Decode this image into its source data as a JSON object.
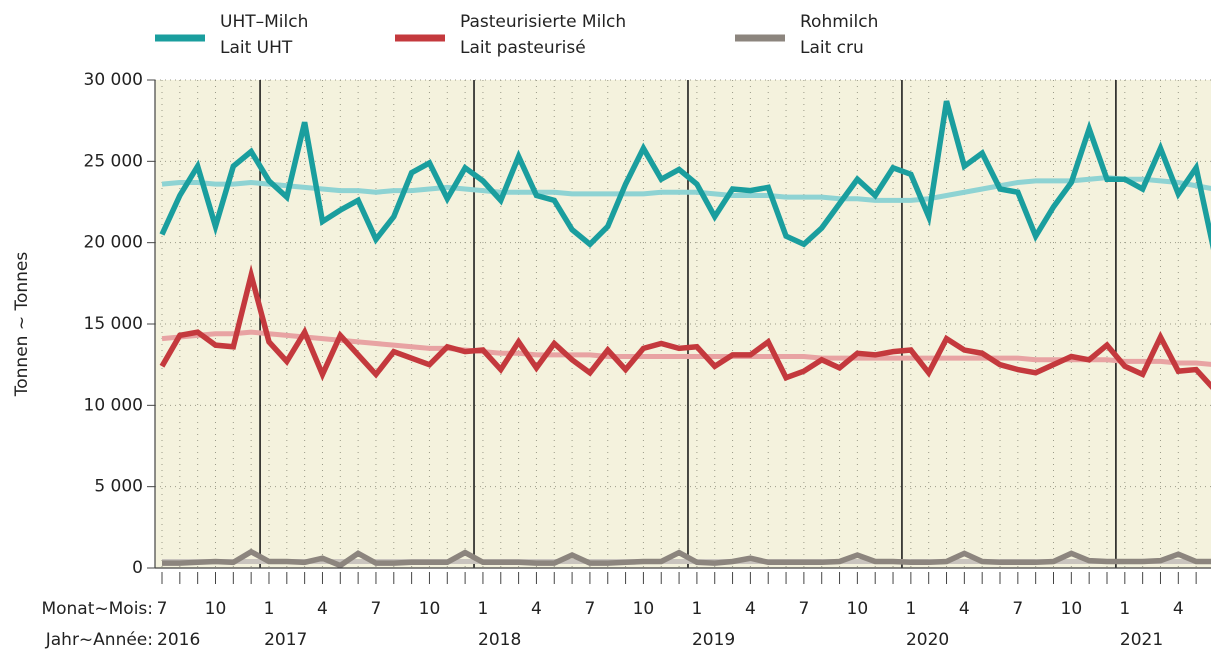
{
  "chart_data": {
    "type": "line",
    "y_label": "Tonnen  ~  Tonnes",
    "month_label": "Monat~Mois:",
    "year_label": "Jahr~Année:",
    "categories": [
      "7",
      null,
      null,
      "10",
      null,
      null,
      "1",
      null,
      null,
      "4",
      null,
      null,
      "7",
      null,
      null,
      "10",
      null,
      null,
      "1",
      null,
      null,
      "4",
      null,
      null,
      "7",
      null,
      null,
      "10",
      null,
      null,
      "1",
      null,
      null,
      "4",
      null,
      null,
      "7",
      null,
      null,
      "10",
      null,
      null,
      "1",
      null,
      null,
      "4",
      null,
      null,
      "7",
      null,
      null,
      "10",
      null,
      null,
      "1",
      null,
      null,
      "4",
      null,
      null
    ],
    "years": [
      "2016",
      "2017",
      "2018",
      "2019",
      "2020",
      "2021"
    ],
    "ylim": [
      0,
      30000
    ],
    "yticks": [
      0,
      {
        "value": 5000,
        "label": "5 000"
      },
      {
        "value": 10000,
        "label": "10 000"
      },
      {
        "value": 15000,
        "label": "15 000"
      },
      {
        "value": 20000,
        "label": "20 000"
      },
      {
        "value": 25000,
        "label": "25 000"
      },
      {
        "value": 30000,
        "label": "30 000"
      }
    ],
    "grid": true,
    "series": [
      {
        "name": [
          "UHT–Milch",
          "Lait UHT"
        ],
        "color": "#1a9e9e",
        "trend_color": "#8ed3d3",
        "values": [
          20500,
          22900,
          24700,
          21000,
          24700,
          25600,
          23800,
          22800,
          27400,
          21300,
          22000,
          22600,
          20200,
          21600,
          24300,
          24900,
          22700,
          24600,
          23800,
          22600,
          25300,
          22900,
          22600,
          20800,
          19900,
          21000,
          23600,
          25800,
          23900,
          24500,
          23600,
          21600,
          23300,
          23200,
          23400,
          20400,
          19900,
          20900,
          22400,
          23900,
          22900,
          24600,
          24200,
          21600,
          28700,
          24700,
          25500,
          23300,
          23100,
          20400,
          22200,
          23700,
          27000,
          23900,
          23900,
          23300,
          25800,
          23000,
          24600,
          19500
        ],
        "trend": [
          23600,
          23700,
          23700,
          23600,
          23600,
          23700,
          23600,
          23500,
          23400,
          23300,
          23200,
          23200,
          23100,
          23200,
          23200,
          23300,
          23400,
          23300,
          23200,
          23100,
          23100,
          23100,
          23100,
          23000,
          23000,
          23000,
          23000,
          23000,
          23100,
          23100,
          23100,
          23000,
          22900,
          22900,
          22900,
          22800,
          22800,
          22800,
          22700,
          22700,
          22600,
          22600,
          22600,
          22700,
          22900,
          23100,
          23300,
          23500,
          23700,
          23800,
          23800,
          23800,
          23900,
          24000,
          23900,
          23900,
          23800,
          23700,
          23500,
          23300
        ]
      },
      {
        "name": [
          "Pasteurisierte Milch",
          "Lait pasteurisé"
        ],
        "color": "#c4393d",
        "trend_color": "#e8a3a3",
        "values": [
          12400,
          14300,
          14500,
          13700,
          13600,
          18000,
          13900,
          12700,
          14500,
          11900,
          14300,
          13100,
          11900,
          13300,
          12900,
          12500,
          13600,
          13300,
          13400,
          12200,
          13900,
          12300,
          13800,
          12800,
          12000,
          13400,
          12200,
          13500,
          13800,
          13500,
          13600,
          12400,
          13100,
          13100,
          13900,
          11700,
          12100,
          12800,
          12300,
          13200,
          13100,
          13300,
          13400,
          12000,
          14100,
          13400,
          13200,
          12500,
          12200,
          12000,
          12500,
          13000,
          12800,
          13700,
          12400,
          11900,
          14200,
          12100,
          12200,
          11000
        ],
        "trend": [
          14100,
          14200,
          14300,
          14400,
          14400,
          14500,
          14400,
          14300,
          14200,
          14100,
          14000,
          13900,
          13800,
          13700,
          13600,
          13500,
          13500,
          13400,
          13300,
          13200,
          13200,
          13100,
          13100,
          13100,
          13100,
          13000,
          13000,
          13000,
          13000,
          13000,
          13000,
          13000,
          13000,
          13000,
          13000,
          13000,
          13000,
          12900,
          12900,
          12900,
          12900,
          12900,
          12900,
          12900,
          12900,
          12900,
          12900,
          12900,
          12900,
          12800,
          12800,
          12800,
          12800,
          12800,
          12700,
          12700,
          12700,
          12600,
          12600,
          12500
        ]
      },
      {
        "name": [
          "Rohmilch",
          "Lait cru"
        ],
        "color": "#8c857e",
        "trend_color": "#c9c4be",
        "values": [
          300,
          300,
          350,
          400,
          350,
          1000,
          400,
          400,
          350,
          600,
          150,
          900,
          300,
          300,
          350,
          350,
          350,
          950,
          350,
          350,
          350,
          300,
          300,
          800,
          300,
          300,
          350,
          400,
          400,
          950,
          350,
          300,
          400,
          600,
          350,
          350,
          350,
          350,
          400,
          800,
          400,
          400,
          350,
          350,
          400,
          900,
          400,
          350,
          350,
          350,
          400,
          900,
          450,
          400,
          400,
          400,
          450,
          850,
          400,
          400
        ],
        "trend": [
          400,
          400,
          400,
          400,
          400,
          400,
          400,
          400,
          400,
          400,
          400,
          400,
          400,
          400,
          400,
          400,
          400,
          400,
          400,
          400,
          400,
          400,
          400,
          400,
          400,
          400,
          400,
          400,
          400,
          400,
          400,
          400,
          400,
          400,
          400,
          400,
          400,
          400,
          400,
          400,
          400,
          400,
          400,
          400,
          400,
          400,
          400,
          400,
          400,
          400,
          400,
          400,
          400,
          400,
          400,
          400,
          400,
          400,
          400,
          400
        ]
      }
    ]
  }
}
